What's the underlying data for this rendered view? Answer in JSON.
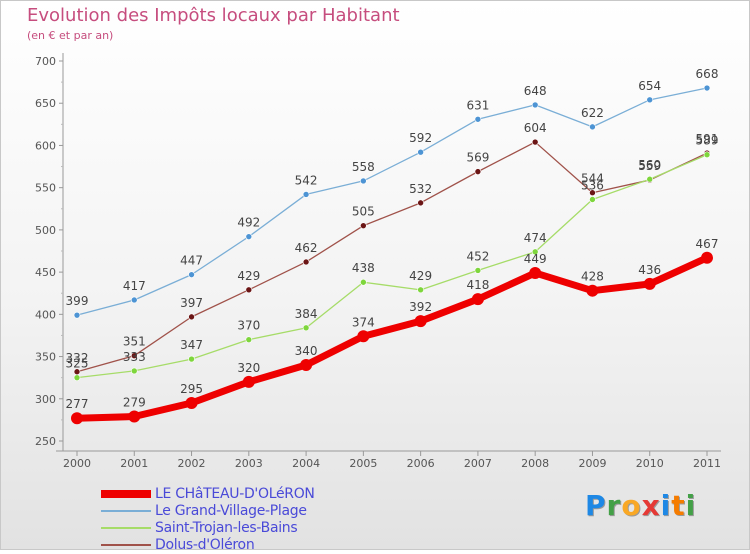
{
  "header": {
    "title": "Evolution des Impôts locaux par Habitant",
    "subtitle": "(en € et par an)"
  },
  "brand": {
    "logo_text": "Proxiti",
    "logo_colors": [
      "#1e88e5",
      "#43a047",
      "#f9a825",
      "#e53935",
      "#1e88e5",
      "#f57c00",
      "#43a047"
    ]
  },
  "chart_data": {
    "type": "line",
    "title": "Evolution des Impôts locaux par Habitant",
    "subtitle": "(en € et par an)",
    "xlabel": "",
    "ylabel": "",
    "categories": [
      "2000",
      "2001",
      "2002",
      "2003",
      "2004",
      "2005",
      "2006",
      "2007",
      "2008",
      "2009",
      "2010",
      "2011"
    ],
    "ylim": [
      250,
      700
    ],
    "yticks": [
      250,
      300,
      350,
      400,
      450,
      500,
      550,
      600,
      650,
      700
    ],
    "grid": false,
    "legend_position": "bottom-left",
    "series": [
      {
        "name": "Le Grand-Village-Plage",
        "color": "#7aaed6",
        "marker": "#4d94d4",
        "values": [
          399,
          417,
          447,
          492,
          542,
          558,
          592,
          631,
          648,
          622,
          654,
          668
        ]
      },
      {
        "name": "Dolus-d'Oléron",
        "color": "#a0524a",
        "marker": "#6b1515",
        "values": [
          332,
          351,
          397,
          429,
          462,
          505,
          532,
          569,
          604,
          544,
          559,
          591
        ]
      },
      {
        "name": "Saint-Trojan-les-Bains",
        "color": "#a6dc68",
        "marker": "#7ed63c",
        "values": [
          325,
          333,
          347,
          370,
          384,
          438,
          429,
          452,
          474,
          536,
          560,
          589
        ]
      },
      {
        "name": "LE CHâTEAU-D'OLéRON",
        "color": "#ee0000",
        "marker": "#ee0000",
        "values": [
          277,
          279,
          295,
          320,
          340,
          374,
          392,
          418,
          449,
          428,
          436,
          467
        ]
      }
    ],
    "labels": [
      {
        "series": "Le Grand-Village-Plage",
        "values": [
          "399",
          "417",
          "447",
          "492",
          "542",
          "558",
          "592",
          "631",
          "648",
          "622",
          "654",
          "668"
        ]
      },
      {
        "series": "Dolus-d'Oléron",
        "values": [
          "332",
          "351",
          "397",
          "429",
          "462",
          "505",
          "532",
          "569",
          "604",
          "544",
          "559",
          "591"
        ]
      },
      {
        "series": "Saint-Trojan-les-Bains",
        "values": [
          "325",
          "333",
          "347",
          "370",
          "384",
          "438",
          "429",
          "452",
          "474",
          "536",
          "560",
          "589"
        ]
      },
      {
        "series": "LE CHâTEAU-D'OLéRON",
        "values": [
          "277",
          "279",
          "295",
          "320",
          "340",
          "374",
          "392",
          "418",
          "449",
          "428",
          "436",
          "467"
        ]
      }
    ]
  },
  "legend": {
    "items": [
      {
        "label": "LE CHâTEAU-D'OLéRON",
        "color": "#ee0000"
      },
      {
        "label": "Le Grand-Village-Plage",
        "color": "#7aaed6"
      },
      {
        "label": "Saint-Trojan-les-Bains",
        "color": "#a6dc68"
      },
      {
        "label": "Dolus-d'Oléron",
        "color": "#a0524a"
      }
    ]
  }
}
